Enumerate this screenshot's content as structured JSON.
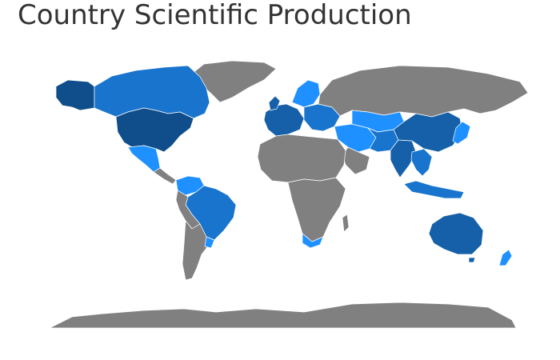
{
  "title": "Country Scientific Production",
  "colors": {
    "background": "#ffffff",
    "no_data": "#808080",
    "level_1": "#1e90ff",
    "level_2": "#1874cd",
    "level_3": "#1560a8",
    "level_4": "#104e8b"
  }
}
